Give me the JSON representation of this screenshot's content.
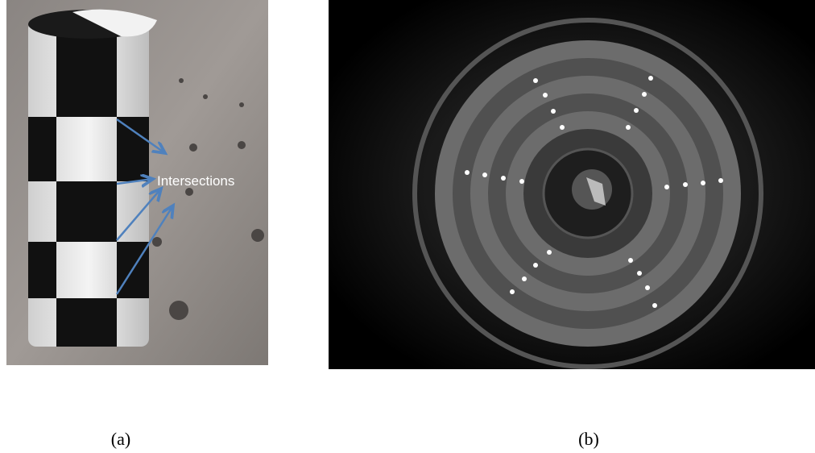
{
  "panels": [
    {
      "label": "(a)",
      "annotation": "Intersections"
    },
    {
      "label": "(b)"
    }
  ]
}
